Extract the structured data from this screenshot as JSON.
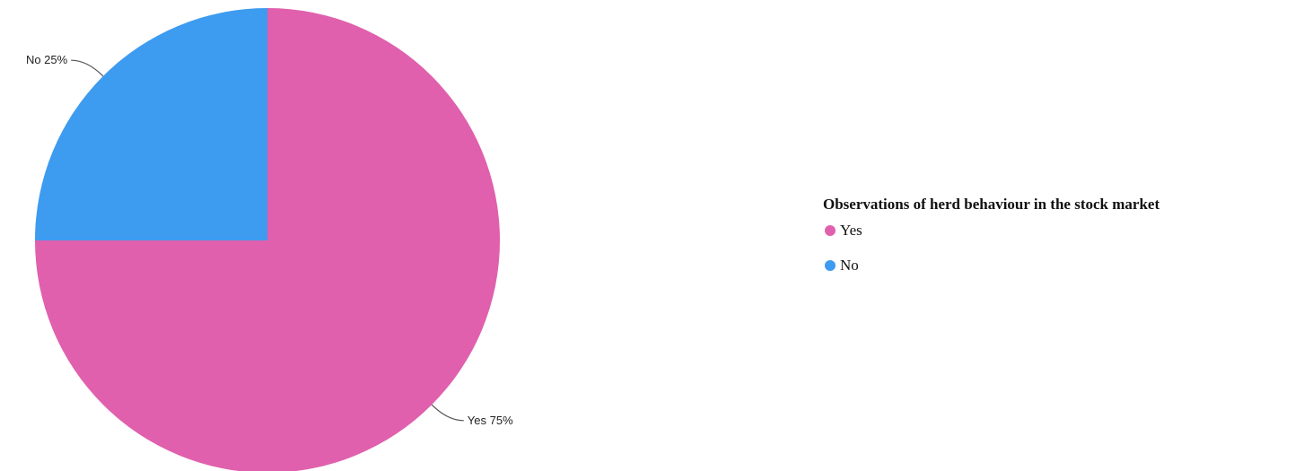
{
  "chart_data": {
    "type": "pie",
    "start": "top, clockwise",
    "legend_title": "Observations of herd behaviour in the stock market",
    "legend_position": "right",
    "slices": [
      {
        "label": "Yes",
        "value": 75,
        "display": "Yes 75%",
        "color": "#E060AD"
      },
      {
        "label": "No",
        "value": 25,
        "display": "No 25%",
        "color": "#3D9BF0"
      }
    ]
  }
}
